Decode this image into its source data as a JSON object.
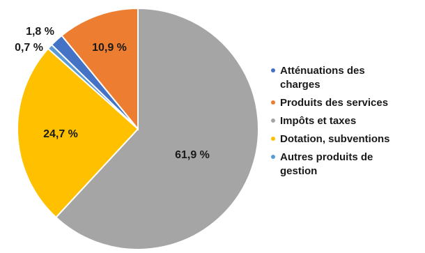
{
  "chart_data": {
    "type": "pie",
    "title": "",
    "start_angle_deg": 0,
    "series": [
      {
        "name": "Impôts et taxes",
        "value": 61.9,
        "label": "61,9 %",
        "color": "#A5A5A5"
      },
      {
        "name": "Dotation, subventions",
        "value": 24.7,
        "label": "24,7 %",
        "color": "#FFC000"
      },
      {
        "name": "Autres produits de gestion",
        "value": 0.7,
        "label": "0,7 %",
        "color": "#5B9BD5"
      },
      {
        "name": "Atténuations des charges",
        "value": 1.8,
        "label": "1,8 %",
        "color": "#4472C4"
      },
      {
        "name": "Produits des services",
        "value": 10.9,
        "label": "10,9 %",
        "color": "#ED7D31"
      }
    ],
    "legend": {
      "placement": "right",
      "entries": [
        {
          "lines": [
            "Atténuations des",
            "charges"
          ],
          "color": "#4472C4"
        },
        {
          "lines": [
            "Produits des services"
          ],
          "color": "#ED7D31"
        },
        {
          "lines": [
            "Impôts et taxes"
          ],
          "color": "#A5A5A5"
        },
        {
          "lines": [
            "Dotation, subventions"
          ],
          "color": "#FFC000"
        },
        {
          "lines": [
            "Autres produits de",
            "gestion"
          ],
          "color": "#5B9BD5"
        }
      ]
    }
  }
}
